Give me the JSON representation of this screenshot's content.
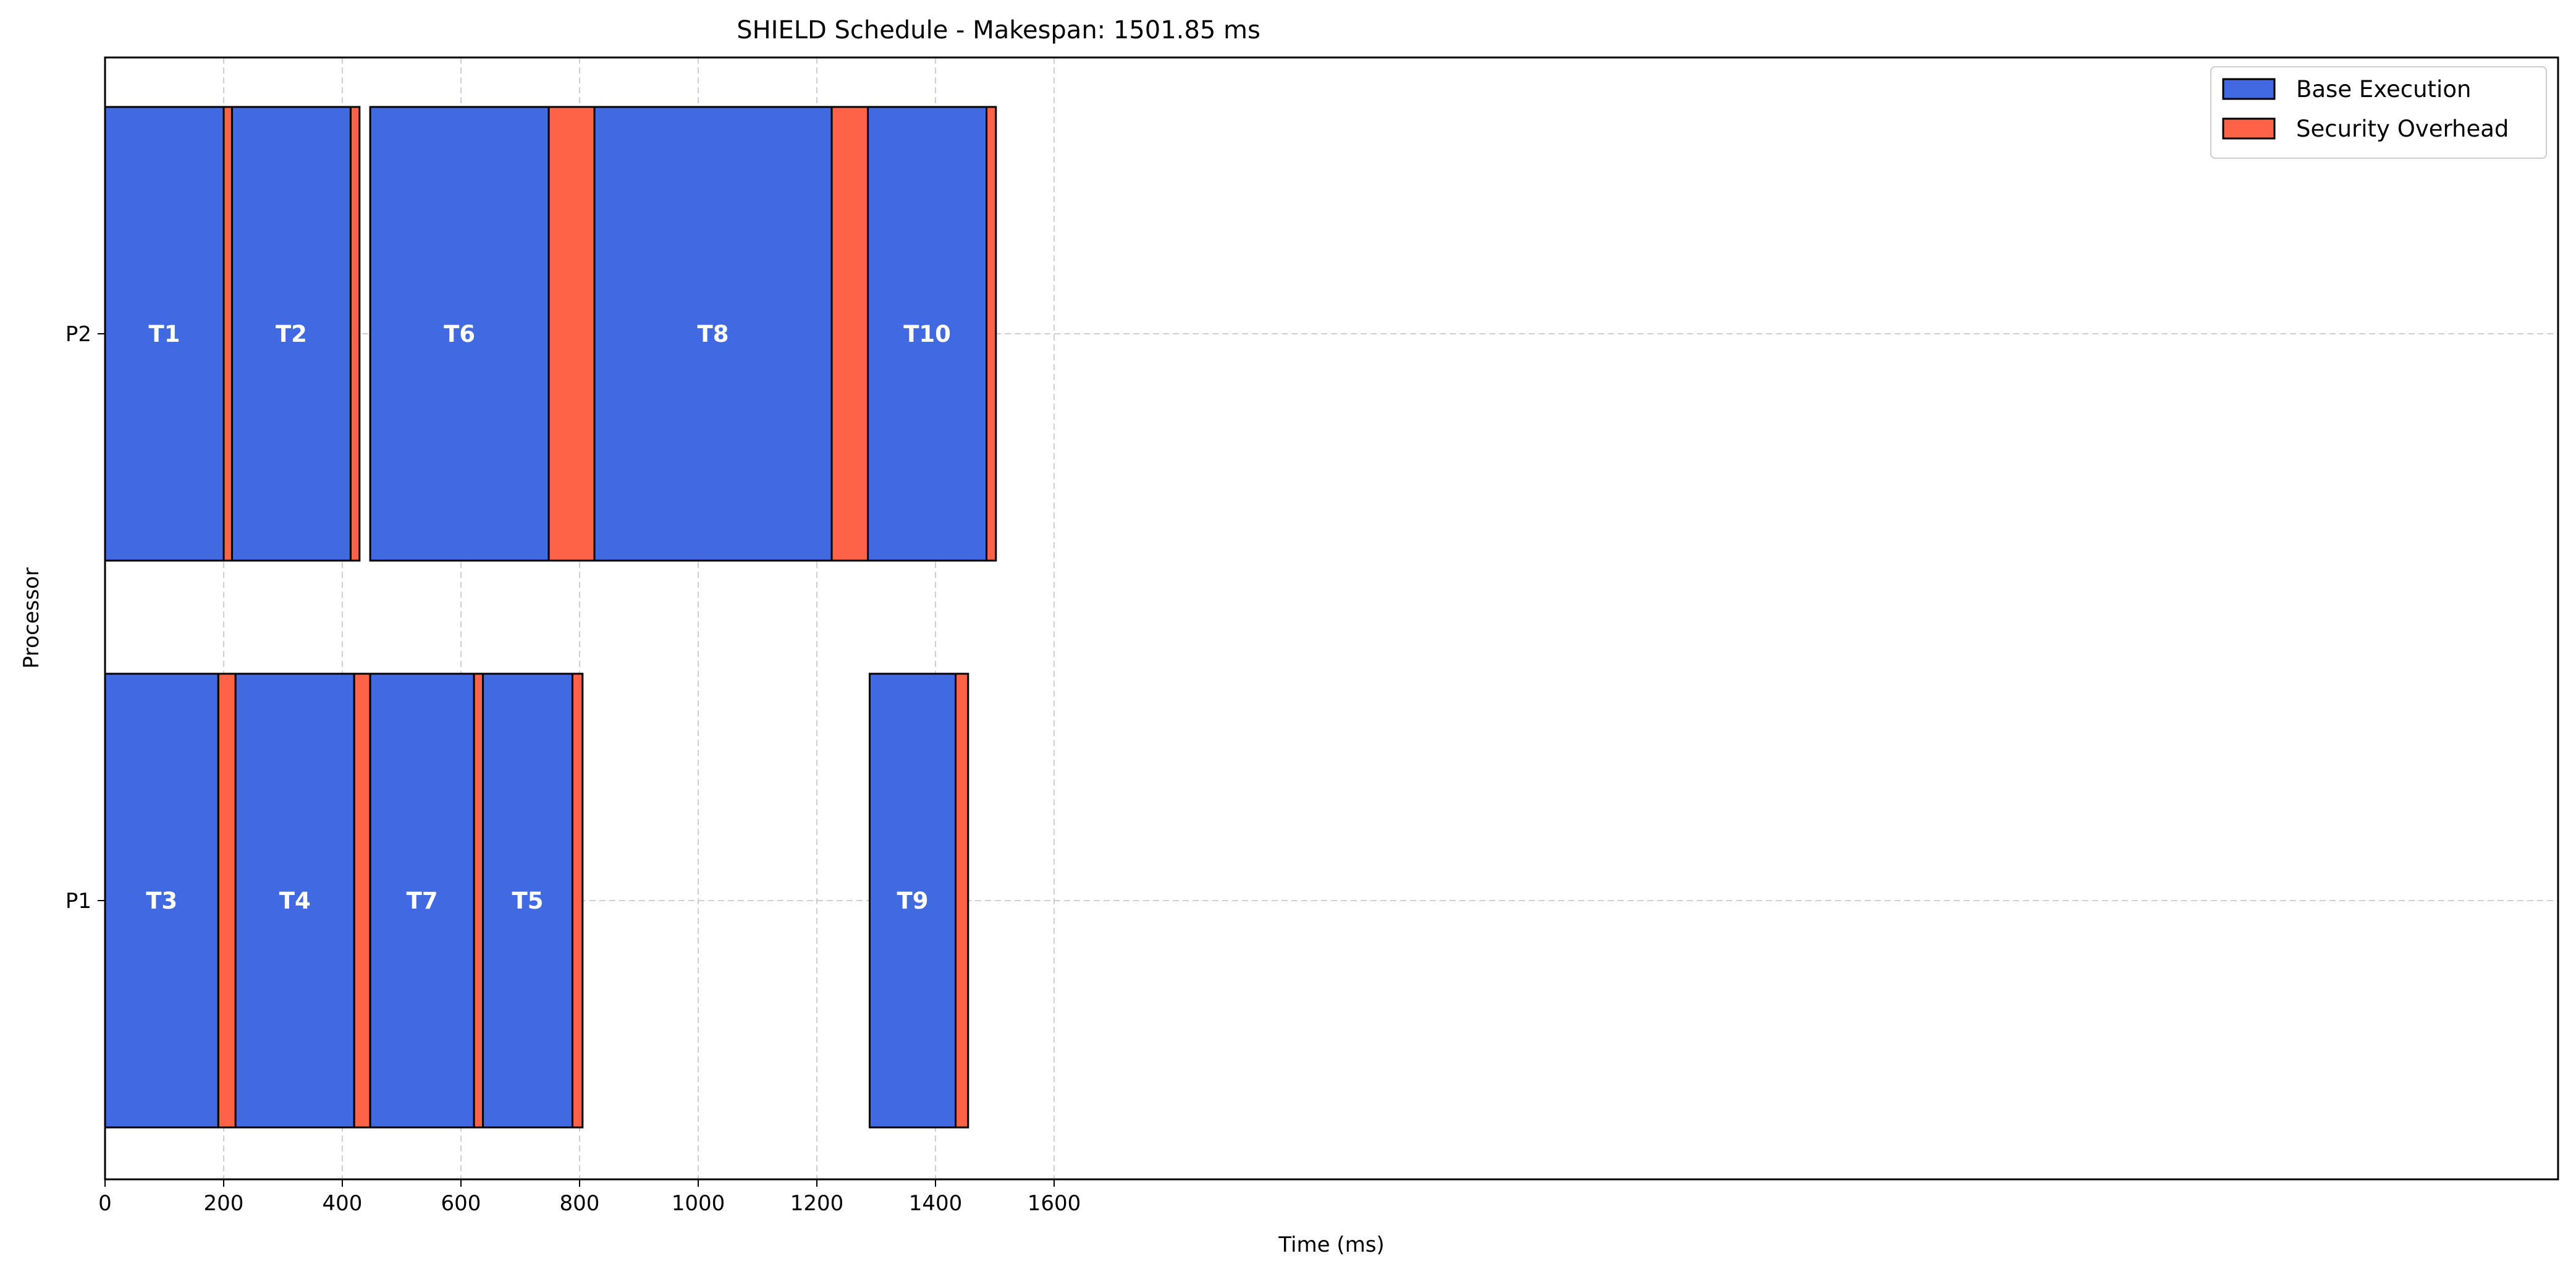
{
  "chart_data": {
    "type": "gantt",
    "title": "SHIELD Schedule - Makespan: 1501.85 ms",
    "xlabel": "Time (ms)",
    "ylabel": "Processor",
    "xlim": [
      0,
      1655
    ],
    "x_ticks": [
      0,
      200,
      400,
      600,
      800,
      1000,
      1200,
      1400,
      1600
    ],
    "grid": true,
    "legend_position": "top-right",
    "legend": [
      {
        "label": "Base Execution",
        "color": "#4169E1"
      },
      {
        "label": "Security Overhead",
        "color": "#FF6347"
      }
    ],
    "processors": [
      "P1",
      "P2"
    ],
    "tasks": [
      {
        "label": "T1",
        "processor": "P2",
        "start": 0,
        "base": 200,
        "overhead": 14
      },
      {
        "label": "T2",
        "processor": "P2",
        "start": 214,
        "base": 200,
        "overhead": 15
      },
      {
        "label": "T6",
        "processor": "P2",
        "start": 447,
        "base": 301,
        "overhead": 77
      },
      {
        "label": "T8",
        "processor": "P2",
        "start": 825,
        "base": 400,
        "overhead": 61
      },
      {
        "label": "T10",
        "processor": "P2",
        "start": 1286,
        "base": 200,
        "overhead": 15.85
      },
      {
        "label": "T3",
        "processor": "P1",
        "start": 0,
        "base": 191,
        "overhead": 29
      },
      {
        "label": "T4",
        "processor": "P1",
        "start": 220,
        "base": 200,
        "overhead": 27
      },
      {
        "label": "T7",
        "processor": "P1",
        "start": 447,
        "base": 175,
        "overhead": 15
      },
      {
        "label": "T5",
        "processor": "P1",
        "start": 637,
        "base": 151,
        "overhead": 17
      },
      {
        "label": "T9",
        "processor": "P1",
        "start": 1289,
        "base": 145,
        "overhead": 21
      }
    ]
  }
}
